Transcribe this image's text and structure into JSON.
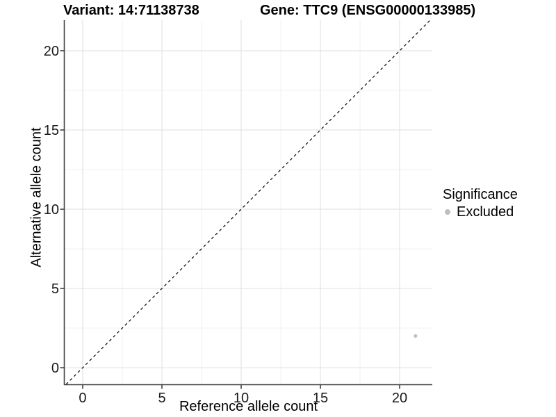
{
  "titles": {
    "variant": "Variant: 14:71138738",
    "gene": "Gene: TTC9 (ENSG00000133985)"
  },
  "chart_data": {
    "type": "scatter",
    "title_left": "Variant: 14:71138738",
    "title_right": "Gene: TTC9 (ENSG00000133985)",
    "xlabel": "Reference allele count",
    "ylabel": "Alternative allele count",
    "xlim": [
      -1.14,
      22.06
    ],
    "ylim": [
      -1.05,
      21.93
    ],
    "x_ticks": [
      0,
      5,
      10,
      15,
      20
    ],
    "y_ticks": [
      0,
      5,
      10,
      15,
      20
    ],
    "x_minor_ticks": [
      2.5,
      7.5,
      12.5,
      17.5
    ],
    "y_minor_ticks": [
      2.5,
      7.5,
      12.5,
      17.5
    ],
    "grid": true,
    "reference_line": {
      "type": "identity",
      "style": "dashed",
      "color": "#000000",
      "from": [
        -1.05,
        -1.05
      ],
      "to": [
        21.93,
        21.93
      ]
    },
    "series": [
      {
        "name": "Excluded",
        "color": "#bebebe",
        "points": [
          {
            "x": 21,
            "y": 2
          }
        ]
      }
    ],
    "legend": {
      "title": "Significance",
      "position": "right",
      "entries": [
        {
          "label": "Excluded",
          "color": "#bebebe"
        }
      ]
    }
  },
  "style_colors": {
    "major_grid": "#e4e4e4",
    "minor_grid": "#f0f0f0",
    "axis_line": "#404040",
    "tick_text": "#1a1a1a"
  }
}
